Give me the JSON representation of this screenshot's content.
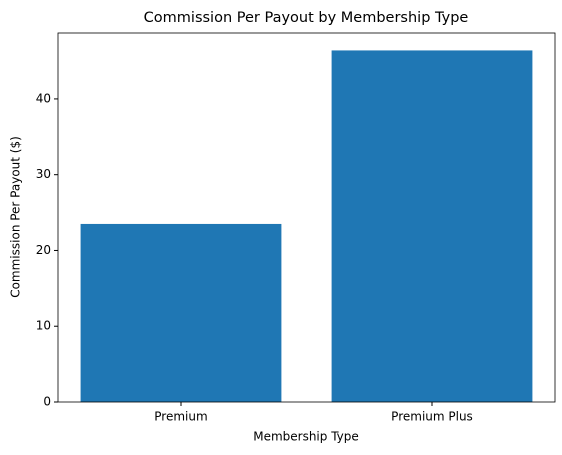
{
  "chart_data": {
    "type": "bar",
    "title": "Commission Per Payout by Membership Type",
    "x_label": "Membership Type",
    "y_label": "Commission Per Payout ($)",
    "categories": [
      "Premium",
      "Premium Plus"
    ],
    "values": [
      23.5,
      46.4
    ],
    "color": "#1f77b4",
    "ylim": [
      0,
      48.7
    ],
    "yticks": [
      0,
      10,
      20,
      30,
      40
    ],
    "grid": false
  }
}
